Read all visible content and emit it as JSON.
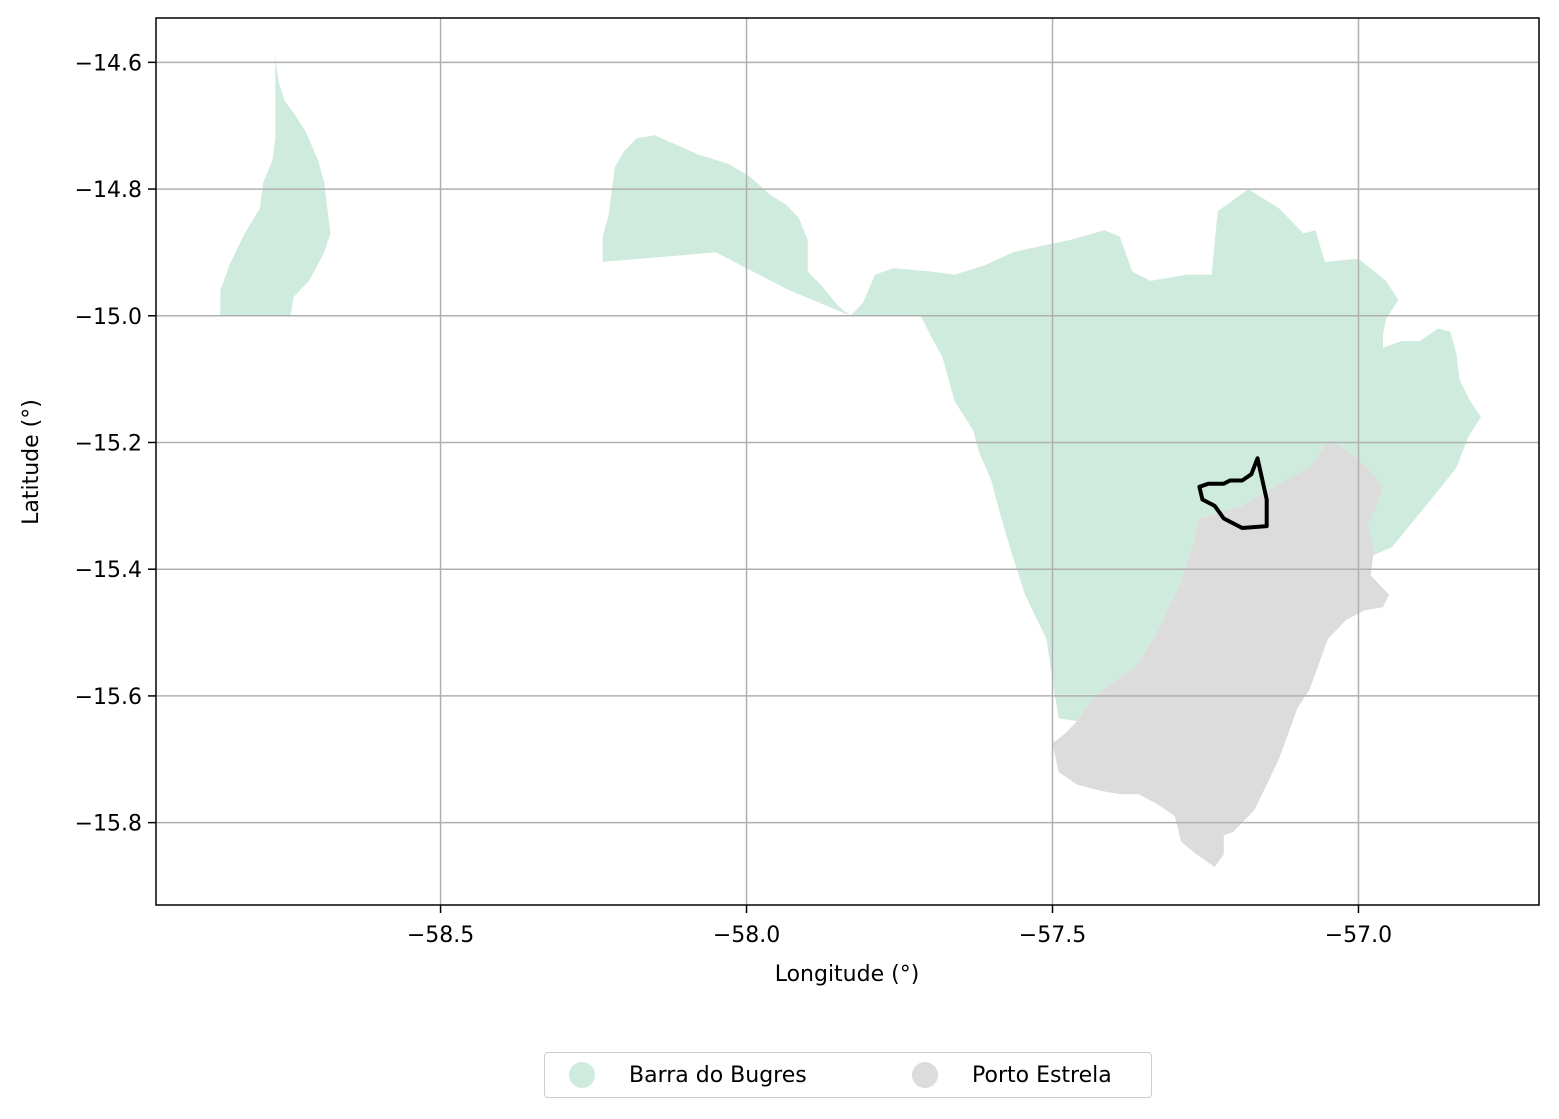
{
  "chart_data": {
    "type": "map",
    "xlabel": "Longitude (°)",
    "ylabel": "Latitude (°)",
    "xlim": [
      -58.965,
      -56.705
    ],
    "ylim": [
      -15.93,
      -14.53
    ],
    "xticks": [
      -58.5,
      -58.0,
      -57.5,
      -57.0
    ],
    "xtick_labels": [
      "−58.5",
      "−58.0",
      "−57.5",
      "−57.0"
    ],
    "yticks": [
      -14.6,
      -14.8,
      -15.0,
      -15.2,
      -15.4,
      -15.6,
      -15.8
    ],
    "ytick_labels": [
      "−14.6",
      "−14.8",
      "−15.0",
      "−15.2",
      "−15.4",
      "−15.6",
      "−15.8"
    ],
    "grid": true,
    "legend_position": "bottom-center",
    "colors": {
      "barra": "#cfebde",
      "porto": "#dcdcdc",
      "outline": "#000000",
      "grid": "#b0b0b0"
    },
    "regions": [
      {
        "name": "Barra do Bugres",
        "color": "#cfebde",
        "polygons": [
          [
            [
              -58.86,
              -15.0
            ],
            [
              -58.86,
              -14.96
            ],
            [
              -58.845,
              -14.92
            ],
            [
              -58.82,
              -14.87
            ],
            [
              -58.795,
              -14.83
            ],
            [
              -58.79,
              -14.79
            ],
            [
              -58.775,
              -14.755
            ],
            [
              -58.77,
              -14.72
            ],
            [
              -58.77,
              -14.665
            ],
            [
              -58.77,
              -14.59
            ],
            [
              -58.765,
              -14.63
            ],
            [
              -58.755,
              -14.66
            ],
            [
              -58.74,
              -14.68
            ],
            [
              -58.72,
              -14.71
            ],
            [
              -58.7,
              -14.755
            ],
            [
              -58.69,
              -14.79
            ],
            [
              -58.685,
              -14.83
            ],
            [
              -58.68,
              -14.87
            ],
            [
              -58.69,
              -14.9
            ],
            [
              -58.715,
              -14.945
            ],
            [
              -58.74,
              -14.97
            ],
            [
              -58.745,
              -15.0
            ]
          ],
          [
            [
              -58.235,
              -14.915
            ],
            [
              -58.235,
              -14.875
            ],
            [
              -58.225,
              -14.84
            ],
            [
              -58.22,
              -14.8
            ],
            [
              -58.215,
              -14.765
            ],
            [
              -58.2,
              -14.74
            ],
            [
              -58.18,
              -14.72
            ],
            [
              -58.15,
              -14.715
            ],
            [
              -58.115,
              -14.73
            ],
            [
              -58.08,
              -14.745
            ],
            [
              -58.03,
              -14.76
            ],
            [
              -57.995,
              -14.78
            ],
            [
              -57.96,
              -14.81
            ],
            [
              -57.935,
              -14.825
            ],
            [
              -57.915,
              -14.845
            ],
            [
              -57.9,
              -14.88
            ],
            [
              -57.9,
              -14.93
            ],
            [
              -57.875,
              -14.955
            ],
            [
              -57.85,
              -14.985
            ],
            [
              -57.83,
              -15.0
            ],
            [
              -57.81,
              -14.98
            ],
            [
              -57.79,
              -14.935
            ],
            [
              -57.76,
              -14.925
            ],
            [
              -57.7,
              -14.93
            ],
            [
              -57.66,
              -14.935
            ],
            [
              -57.61,
              -14.92
            ],
            [
              -57.565,
              -14.9
            ],
            [
              -57.52,
              -14.89
            ],
            [
              -57.47,
              -14.88
            ],
            [
              -57.415,
              -14.865
            ],
            [
              -57.39,
              -14.875
            ],
            [
              -57.37,
              -14.93
            ],
            [
              -57.34,
              -14.945
            ],
            [
              -57.28,
              -14.935
            ],
            [
              -57.24,
              -14.935
            ],
            [
              -57.23,
              -14.835
            ],
            [
              -57.18,
              -14.8
            ],
            [
              -57.13,
              -14.83
            ],
            [
              -57.09,
              -14.87
            ],
            [
              -57.07,
              -14.865
            ],
            [
              -57.055,
              -14.915
            ],
            [
              -57.0,
              -14.91
            ],
            [
              -56.955,
              -14.945
            ],
            [
              -56.935,
              -14.975
            ],
            [
              -56.955,
              -15.005
            ],
            [
              -56.96,
              -15.03
            ],
            [
              -56.96,
              -15.05
            ],
            [
              -56.93,
              -15.04
            ],
            [
              -56.9,
              -15.04
            ],
            [
              -56.87,
              -15.02
            ],
            [
              -56.85,
              -15.025
            ],
            [
              -56.84,
              -15.06
            ],
            [
              -56.835,
              -15.1
            ],
            [
              -56.82,
              -15.13
            ],
            [
              -56.8,
              -15.16
            ],
            [
              -56.82,
              -15.19
            ],
            [
              -56.84,
              -15.24
            ],
            [
              -56.89,
              -15.3
            ],
            [
              -56.945,
              -15.365
            ],
            [
              -56.98,
              -15.38
            ],
            [
              -57.0,
              -15.36
            ],
            [
              -57.035,
              -15.3
            ],
            [
              -57.055,
              -15.25
            ],
            [
              -57.12,
              -15.26
            ],
            [
              -57.19,
              -15.3
            ],
            [
              -57.26,
              -15.32
            ],
            [
              -57.27,
              -15.36
            ],
            [
              -57.29,
              -15.42
            ],
            [
              -57.33,
              -15.5
            ],
            [
              -57.36,
              -15.55
            ],
            [
              -57.41,
              -15.585
            ],
            [
              -57.44,
              -15.61
            ],
            [
              -57.46,
              -15.64
            ],
            [
              -57.49,
              -15.635
            ],
            [
              -57.5,
              -15.575
            ],
            [
              -57.51,
              -15.51
            ],
            [
              -57.53,
              -15.47
            ],
            [
              -57.545,
              -15.44
            ],
            [
              -57.565,
              -15.38
            ],
            [
              -57.585,
              -15.315
            ],
            [
              -57.6,
              -15.26
            ],
            [
              -57.62,
              -15.215
            ],
            [
              -57.63,
              -15.18
            ],
            [
              -57.66,
              -15.135
            ],
            [
              -57.68,
              -15.065
            ],
            [
              -57.7,
              -15.03
            ],
            [
              -57.715,
              -15.0
            ],
            [
              -57.83,
              -15.0
            ],
            [
              -57.93,
              -14.96
            ],
            [
              -58.05,
              -14.9
            ],
            [
              -58.235,
              -14.915
            ]
          ]
        ]
      },
      {
        "name": "Porto Estrela",
        "color": "#dcdcdc",
        "polygons": [
          [
            [
              -57.05,
              -15.2
            ],
            [
              -57.03,
              -15.205
            ],
            [
              -57.01,
              -15.22
            ],
            [
              -56.985,
              -15.24
            ],
            [
              -56.96,
              -15.27
            ],
            [
              -56.97,
              -15.3
            ],
            [
              -56.985,
              -15.33
            ],
            [
              -56.975,
              -15.37
            ],
            [
              -56.98,
              -15.41
            ],
            [
              -56.95,
              -15.44
            ],
            [
              -56.96,
              -15.46
            ],
            [
              -56.99,
              -15.465
            ],
            [
              -57.02,
              -15.48
            ],
            [
              -57.05,
              -15.51
            ],
            [
              -57.065,
              -15.55
            ],
            [
              -57.08,
              -15.59
            ],
            [
              -57.1,
              -15.62
            ],
            [
              -57.115,
              -15.66
            ],
            [
              -57.13,
              -15.7
            ],
            [
              -57.15,
              -15.74
            ],
            [
              -57.17,
              -15.78
            ],
            [
              -57.19,
              -15.8
            ],
            [
              -57.205,
              -15.815
            ],
            [
              -57.22,
              -15.82
            ],
            [
              -57.22,
              -15.85
            ],
            [
              -57.235,
              -15.87
            ],
            [
              -57.25,
              -15.86
            ],
            [
              -57.265,
              -15.85
            ],
            [
              -57.29,
              -15.83
            ],
            [
              -57.3,
              -15.79
            ],
            [
              -57.33,
              -15.77
            ],
            [
              -57.36,
              -15.755
            ],
            [
              -57.39,
              -15.755
            ],
            [
              -57.42,
              -15.75
            ],
            [
              -57.46,
              -15.74
            ],
            [
              -57.49,
              -15.72
            ],
            [
              -57.5,
              -15.675
            ],
            [
              -57.48,
              -15.66
            ],
            [
              -57.46,
              -15.64
            ],
            [
              -57.44,
              -15.61
            ],
            [
              -57.41,
              -15.585
            ],
            [
              -57.36,
              -15.55
            ],
            [
              -57.33,
              -15.5
            ],
            [
              -57.29,
              -15.42
            ],
            [
              -57.27,
              -15.36
            ],
            [
              -57.26,
              -15.32
            ],
            [
              -57.19,
              -15.3
            ],
            [
              -57.12,
              -15.26
            ],
            [
              -57.08,
              -15.24
            ],
            [
              -57.05,
              -15.2
            ]
          ]
        ]
      }
    ],
    "outline": {
      "color": "#000000",
      "coords": [
        [
          -57.165,
          -15.225
        ],
        [
          -57.15,
          -15.29
        ],
        [
          -57.15,
          -15.332
        ],
        [
          -57.19,
          -15.335
        ],
        [
          -57.22,
          -15.32
        ],
        [
          -57.235,
          -15.3
        ],
        [
          -57.255,
          -15.29
        ],
        [
          -57.26,
          -15.27
        ],
        [
          -57.245,
          -15.265
        ],
        [
          -57.22,
          -15.265
        ],
        [
          -57.21,
          -15.26
        ],
        [
          -57.19,
          -15.26
        ],
        [
          -57.175,
          -15.25
        ],
        [
          -57.165,
          -15.225
        ]
      ]
    },
    "legend": [
      {
        "label": "Barra do Bugres",
        "color": "#cfebde"
      },
      {
        "label": "Porto Estrela",
        "color": "#dcdcdc"
      }
    ]
  }
}
